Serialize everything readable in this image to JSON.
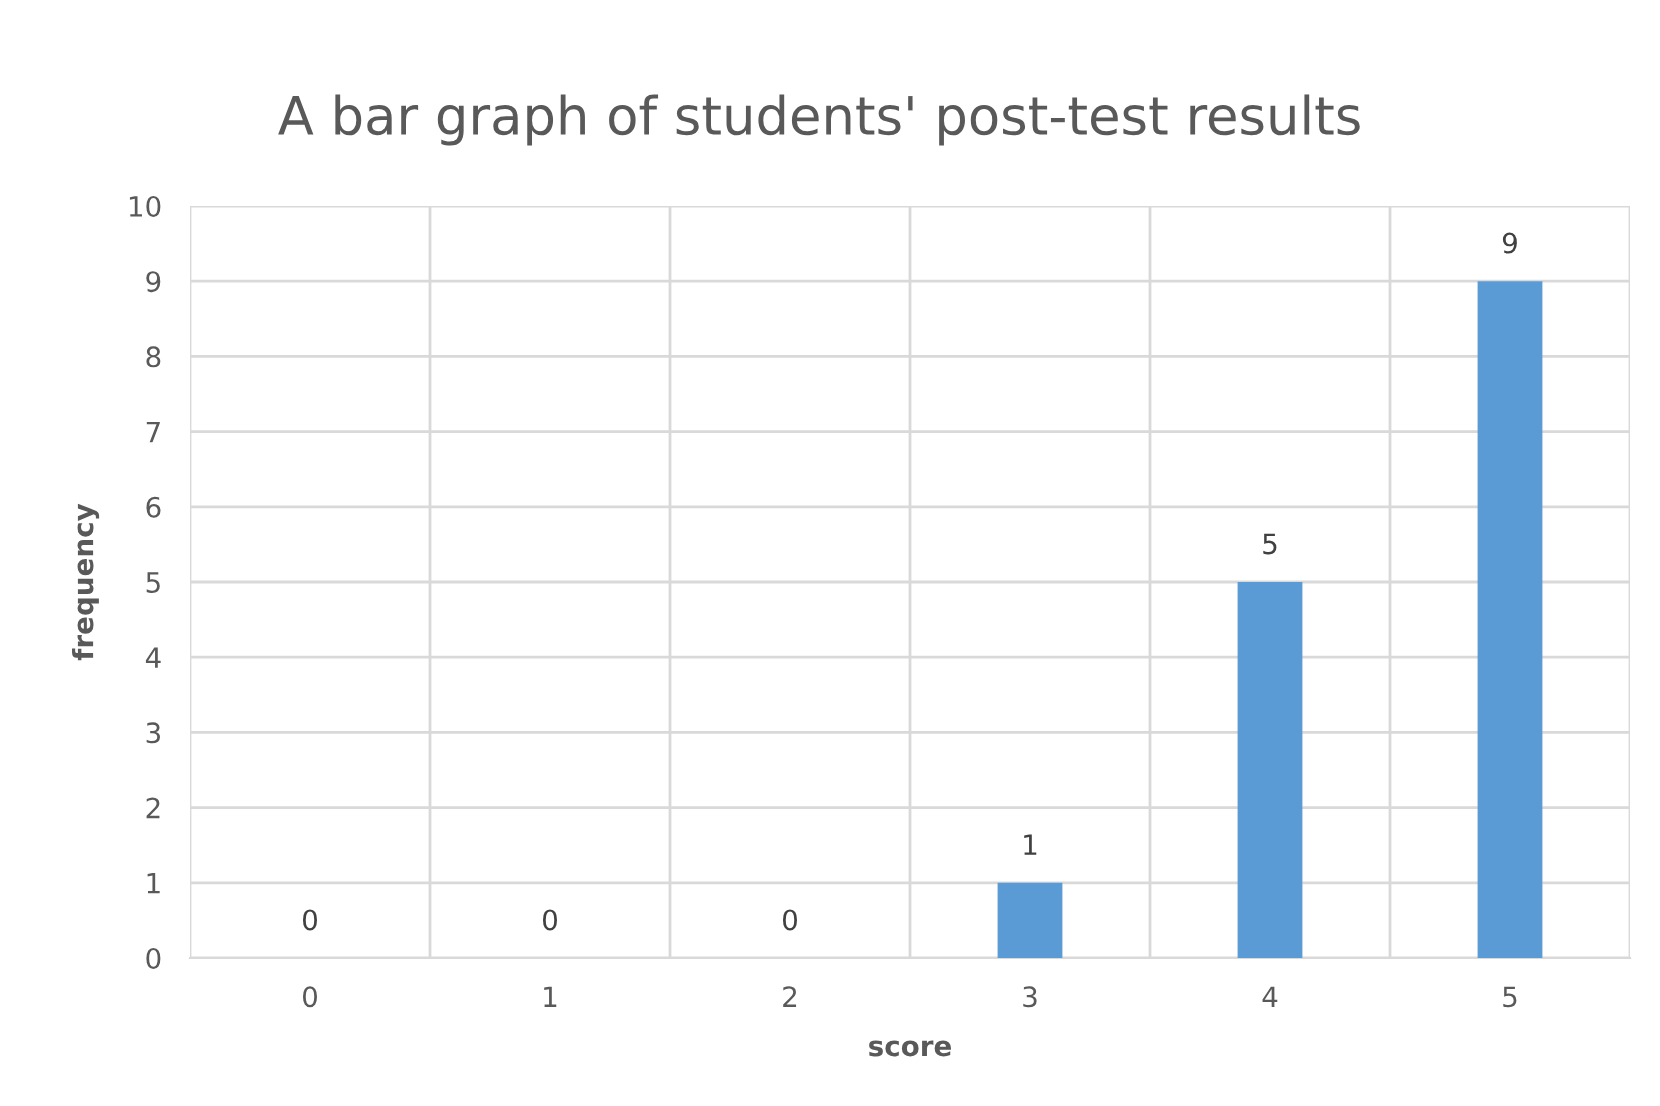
{
  "chart_data": {
    "type": "bar",
    "title": "A bar graph of students' post-test results",
    "xlabel": "score",
    "ylabel": "frequency",
    "categories": [
      "0",
      "1",
      "2",
      "3",
      "4",
      "5"
    ],
    "values": [
      0,
      0,
      0,
      1,
      5,
      9
    ],
    "color": "#5b9bd5",
    "ylim": [
      0,
      10
    ],
    "yticks": [
      0,
      1,
      2,
      3,
      4,
      5,
      6,
      7,
      8,
      9,
      10
    ],
    "grid": true,
    "data_labels": true
  }
}
